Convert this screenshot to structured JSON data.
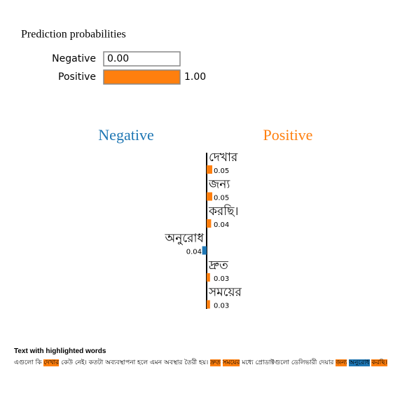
{
  "probabilities": {
    "title": "Prediction probabilities",
    "classes": [
      "Negative",
      "Positive"
    ],
    "values": [
      0.0,
      1.0
    ],
    "value_labels": [
      "0.00",
      "1.00"
    ],
    "colors": [
      "#1f77b4",
      "#ff7f0e"
    ]
  },
  "weights": {
    "left_title": "Negative",
    "right_title": "Positive",
    "left_color": "#1f77b4",
    "right_color": "#ff7f0e",
    "features": [
      "দেখার",
      "জন্য",
      "করছি।",
      "অনুরোধ",
      "দ্রুত",
      "সময়ের"
    ],
    "values": [
      0.05,
      0.05,
      0.04,
      -0.04,
      0.03,
      0.03
    ],
    "value_labels": [
      "0.05",
      "0.05",
      "0.04",
      "0.04",
      "0.03",
      "0.03"
    ]
  },
  "text": {
    "title": "Text with highlighted words",
    "segments": [
      "এগুলো কি ",
      {
        "text": "দেখার",
        "color": "#ff7f0e"
      },
      " কেউ নেই। কতটা অব্যবস্থাপনা হলে এমন অবস্থার তৈরী হয়। ",
      {
        "text": "দ্রুত",
        "color": "#ff7f0e"
      },
      " ",
      {
        "text": "সময়ের",
        "color": "#ff7f0e"
      },
      " মধ্যে প্রোডাক্টগুলো ডেলিভারী দেয়ার ",
      {
        "text": "জন্য",
        "color": "#ff7f0e"
      },
      " ",
      {
        "text": "অনুরোধ",
        "color": "#1f77b4"
      },
      " ",
      {
        "text": "করছি।",
        "color": "#ff7f0e"
      }
    ]
  }
}
